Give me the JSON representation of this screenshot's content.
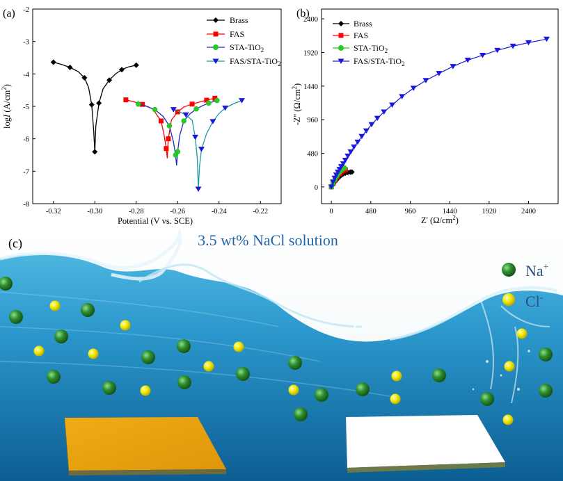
{
  "panel_labels": {
    "a": "(a)",
    "b": "(b)",
    "c": "(c)"
  },
  "legend": {
    "brass": "Brass",
    "fas": "FAS",
    "sta": "STA-TiO",
    "fassta": "FAS/STA-TiO",
    "sub": "2"
  },
  "series_colors": {
    "brass": "#000000",
    "fas": "#ff0000",
    "sta": "#22cc22",
    "fassta": "#1a1adc"
  },
  "chart_a": {
    "xlabel": "Potential (V vs. SCE)",
    "ylabel_prefix": "log",
    "ylabel_italic": "I",
    "ylabel_unit": " (A/cm",
    "ylabel_sup": "2",
    "ylabel_close": ")"
  },
  "chart_b": {
    "xlabel_prefix": "Z' (",
    "xlabel_unit": "Ω/cm",
    "xlabel_sup": "2",
    "xlabel_close": ")",
    "ylabel_prefix": "-Z'' (",
    "ylabel_unit": "Ω/cm",
    "ylabel_sup": "2",
    "ylabel_close": ")"
  },
  "chart_data": [
    {
      "type": "line",
      "title": "",
      "xlabel": "Potential (V vs. SCE)",
      "ylabel": "log I (A/cm2)",
      "xlim": [
        -0.33,
        -0.21
      ],
      "ylim": [
        -8,
        -2
      ],
      "xticks": [
        -0.32,
        -0.3,
        -0.28,
        -0.26,
        -0.24,
        -0.22
      ],
      "yticks": [
        -2,
        -3,
        -4,
        -5,
        -6,
        -7,
        -8
      ],
      "legend_position": "top-right",
      "series": [
        {
          "name": "Brass",
          "x": [
            -0.32,
            -0.316,
            -0.312,
            -0.308,
            -0.305,
            -0.303,
            -0.3015,
            -0.3005,
            -0.3,
            -0.2995,
            -0.298,
            -0.296,
            -0.293,
            -0.29,
            -0.287,
            -0.284,
            -0.28
          ],
          "y": [
            -3.64,
            -3.71,
            -3.8,
            -3.93,
            -4.12,
            -4.42,
            -4.95,
            -5.8,
            -6.4,
            -5.6,
            -4.9,
            -4.46,
            -4.19,
            -4.0,
            -3.87,
            -3.79,
            -3.73
          ]
        },
        {
          "name": "FAS",
          "x": [
            -0.285,
            -0.281,
            -0.277,
            -0.272,
            -0.268,
            -0.2665,
            -0.2655,
            -0.265,
            -0.2645,
            -0.263,
            -0.26,
            -0.257,
            -0.253,
            -0.249,
            -0.246,
            -0.242
          ],
          "y": [
            -4.8,
            -4.86,
            -4.94,
            -5.08,
            -5.45,
            -5.9,
            -6.3,
            -6.6,
            -6.0,
            -5.42,
            -5.17,
            -5.02,
            -4.93,
            -4.86,
            -4.81,
            -4.75
          ]
        },
        {
          "name": "STA-TiO2",
          "x": [
            -0.279,
            -0.275,
            -0.271,
            -0.267,
            -0.264,
            -0.262,
            -0.261,
            -0.2605,
            -0.26,
            -0.259,
            -0.257,
            -0.254,
            -0.251,
            -0.248,
            -0.245,
            -0.241
          ],
          "y": [
            -4.93,
            -5.0,
            -5.1,
            -5.31,
            -5.6,
            -6.1,
            -6.5,
            -6.82,
            -6.4,
            -5.9,
            -5.45,
            -5.23,
            -5.08,
            -4.98,
            -4.9,
            -4.82
          ]
        },
        {
          "name": "FAS/STA-TiO2",
          "x": [
            -0.262,
            -0.259,
            -0.256,
            -0.253,
            -0.2515,
            -0.2505,
            -0.25,
            -0.2495,
            -0.2485,
            -0.246,
            -0.243,
            -0.24,
            -0.237,
            -0.233,
            -0.229
          ],
          "y": [
            -5.1,
            -5.17,
            -5.26,
            -5.43,
            -5.95,
            -6.6,
            -7.55,
            -6.9,
            -6.32,
            -5.84,
            -5.47,
            -5.22,
            -5.05,
            -4.92,
            -4.82
          ]
        }
      ]
    },
    {
      "type": "scatter",
      "title": "",
      "xlabel": "Z' (Ω/cm2)",
      "ylabel": "-Z'' (Ω/cm2)",
      "xlim": [
        -120,
        2760
      ],
      "ylim": [
        -240,
        2540
      ],
      "xticks": [
        0,
        480,
        960,
        1440,
        1920,
        2400
      ],
      "yticks": [
        0,
        480,
        960,
        1440,
        1920,
        2400
      ],
      "legend_position": "top-left",
      "series": [
        {
          "name": "Brass",
          "x": [
            0,
            25,
            50,
            80,
            110,
            140,
            170,
            200,
            230,
            250
          ],
          "y": [
            0,
            40,
            80,
            120,
            155,
            180,
            195,
            205,
            210,
            212
          ]
        },
        {
          "name": "FAS",
          "x": [
            0,
            20,
            45,
            70,
            100,
            125,
            150,
            170
          ],
          "y": [
            0,
            45,
            95,
            140,
            185,
            215,
            235,
            245
          ]
        },
        {
          "name": "STA-TiO2",
          "x": [
            0,
            20,
            45,
            70,
            95,
            120,
            145,
            160
          ],
          "y": [
            0,
            50,
            105,
            160,
            205,
            240,
            262,
            270
          ]
        },
        {
          "name": "FAS/STA-TiO2",
          "x": [
            0,
            20,
            40,
            60,
            80,
            100,
            120,
            145,
            170,
            200,
            235,
            275,
            320,
            370,
            425,
            490,
            560,
            640,
            740,
            860,
            1000,
            1150,
            1310,
            1480,
            1660,
            1840,
            2020,
            2210,
            2400,
            2620
          ],
          "y": [
            0,
            70,
            125,
            170,
            210,
            250,
            290,
            330,
            380,
            440,
            500,
            570,
            640,
            720,
            800,
            890,
            980,
            1070,
            1170,
            1290,
            1410,
            1520,
            1620,
            1720,
            1810,
            1880,
            1950,
            2010,
            2060,
            2110
          ]
        }
      ]
    }
  ],
  "panel_c": {
    "title": "3.5 wt% NaCl solution",
    "na_label": "Na",
    "na_sup": "+",
    "cl_label": "Cl",
    "cl_sup": "-",
    "colors": {
      "water_top": "#c7e4f1",
      "water_bottom": "#0b5f93",
      "na": "#2f8f2f",
      "cl": "#f2e600",
      "brass_plate": "#e8a514",
      "coated_plate": "#ffffff"
    }
  }
}
